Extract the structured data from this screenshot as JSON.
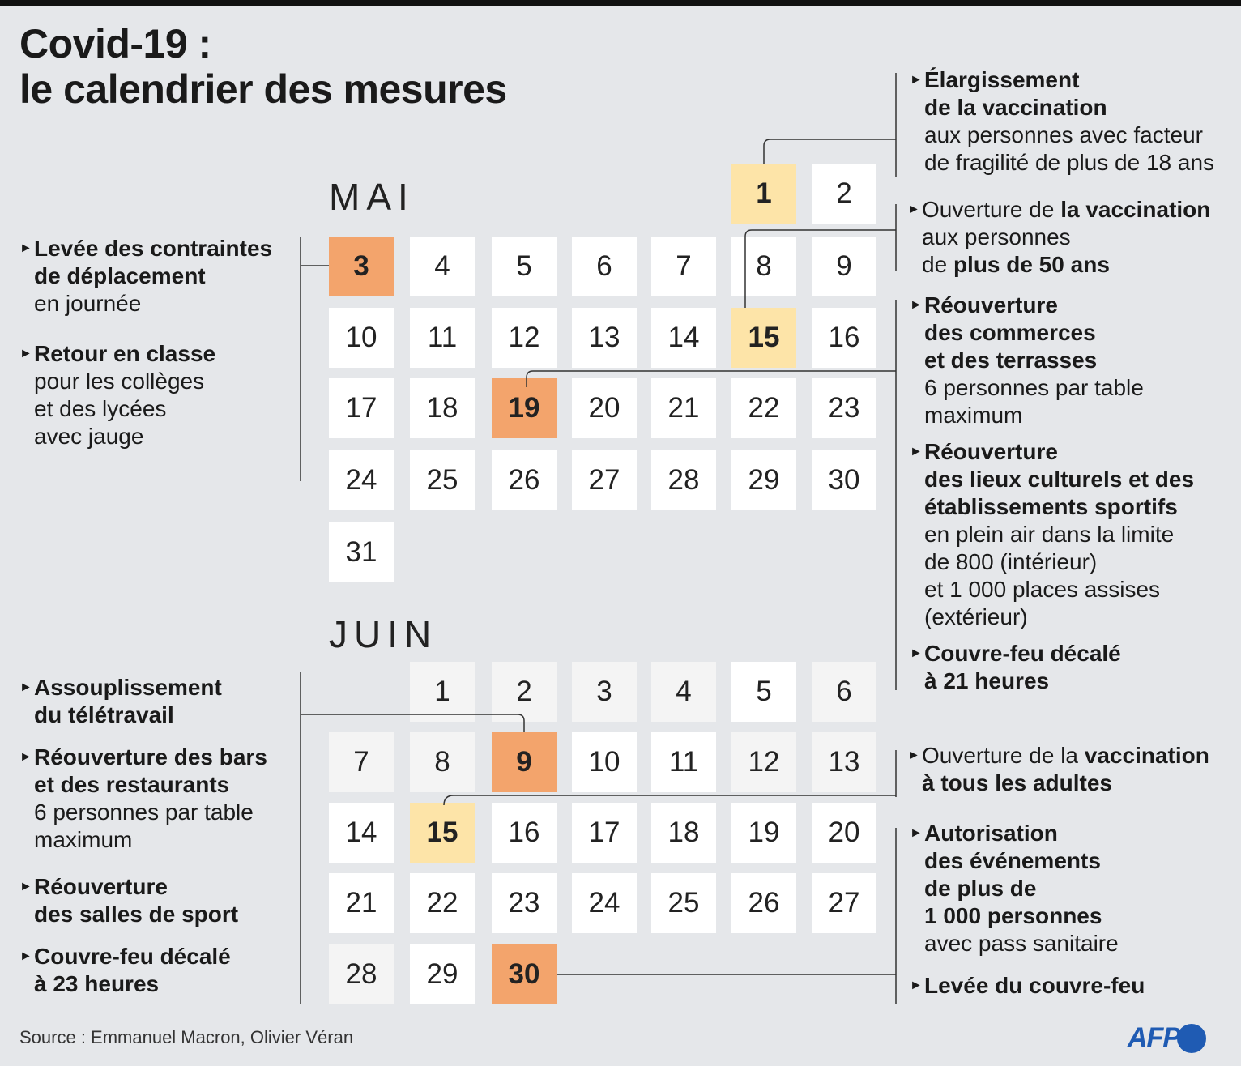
{
  "title": {
    "line1": "Covid-19 :",
    "line2": "le calendrier des mesures"
  },
  "months": {
    "mai": "MAI",
    "juin": "JUIN"
  },
  "mai_days": [
    {
      "d": "1",
      "style": "yellow"
    },
    {
      "d": "2",
      "style": "white"
    },
    {
      "d": "3",
      "style": "orange"
    },
    {
      "d": "4",
      "style": "white"
    },
    {
      "d": "5",
      "style": "white"
    },
    {
      "d": "6",
      "style": "white"
    },
    {
      "d": "7",
      "style": "white"
    },
    {
      "d": "8",
      "style": "white"
    },
    {
      "d": "9",
      "style": "white"
    },
    {
      "d": "10",
      "style": "white"
    },
    {
      "d": "11",
      "style": "white"
    },
    {
      "d": "12",
      "style": "white"
    },
    {
      "d": "13",
      "style": "white"
    },
    {
      "d": "14",
      "style": "white"
    },
    {
      "d": "15",
      "style": "yellow"
    },
    {
      "d": "16",
      "style": "white"
    },
    {
      "d": "17",
      "style": "white"
    },
    {
      "d": "18",
      "style": "white"
    },
    {
      "d": "19",
      "style": "orange"
    },
    {
      "d": "20",
      "style": "white"
    },
    {
      "d": "21",
      "style": "white"
    },
    {
      "d": "22",
      "style": "white"
    },
    {
      "d": "23",
      "style": "white"
    },
    {
      "d": "24",
      "style": "white"
    },
    {
      "d": "25",
      "style": "white"
    },
    {
      "d": "26",
      "style": "white"
    },
    {
      "d": "27",
      "style": "white"
    },
    {
      "d": "28",
      "style": "white"
    },
    {
      "d": "29",
      "style": "white"
    },
    {
      "d": "30",
      "style": "white"
    },
    {
      "d": "31",
      "style": "white"
    }
  ],
  "juin_days": [
    {
      "d": "1",
      "style": "pale"
    },
    {
      "d": "2",
      "style": "pale"
    },
    {
      "d": "3",
      "style": "pale"
    },
    {
      "d": "4",
      "style": "pale"
    },
    {
      "d": "5",
      "style": "white"
    },
    {
      "d": "6",
      "style": "pale"
    },
    {
      "d": "7",
      "style": "pale"
    },
    {
      "d": "8",
      "style": "pale"
    },
    {
      "d": "9",
      "style": "orange"
    },
    {
      "d": "10",
      "style": "white"
    },
    {
      "d": "11",
      "style": "white"
    },
    {
      "d": "12",
      "style": "pale"
    },
    {
      "d": "13",
      "style": "pale"
    },
    {
      "d": "14",
      "style": "white"
    },
    {
      "d": "15",
      "style": "yellow"
    },
    {
      "d": "16",
      "style": "white"
    },
    {
      "d": "17",
      "style": "white"
    },
    {
      "d": "18",
      "style": "white"
    },
    {
      "d": "19",
      "style": "white"
    },
    {
      "d": "20",
      "style": "white"
    },
    {
      "d": "21",
      "style": "white"
    },
    {
      "d": "22",
      "style": "white"
    },
    {
      "d": "23",
      "style": "white"
    },
    {
      "d": "24",
      "style": "white"
    },
    {
      "d": "25",
      "style": "white"
    },
    {
      "d": "26",
      "style": "white"
    },
    {
      "d": "27",
      "style": "white"
    },
    {
      "d": "28",
      "style": "pale"
    },
    {
      "d": "29",
      "style": "white"
    },
    {
      "d": "30",
      "style": "orange"
    }
  ],
  "notes": {
    "m1": {
      "b1": "Élargissement",
      "b2": "de la vaccination",
      "t1": "aux personnes avec facteur",
      "t2": "de fragilité de plus de 18 ans"
    },
    "m15": {
      "t1": "Ouverture de ",
      "b1": "la vaccination",
      "t2": "aux personnes",
      "t3": "de ",
      "b2": "plus de 50 ans"
    },
    "m3a": {
      "b1": "Levée des contraintes",
      "b2": "de déplacement",
      "t1": "en journée"
    },
    "m3b": {
      "b1": "Retour en classe",
      "t1": "pour les collèges",
      "t2": "et des lycées",
      "t3": "avec jauge"
    },
    "m19a": {
      "b1": "Réouverture",
      "b2": "des commerces",
      "b3": "et des terrasses",
      "t1": "6 personnes par table",
      "t2": "maximum"
    },
    "m19b": {
      "b1": "Réouverture",
      "b2": "des lieux culturels et des",
      "b3": "établissements sportifs",
      "t1": "en plein air dans la limite",
      "t2": "de 800 (intérieur)",
      "t3": "et 1 000 places assises",
      "t4": "(extérieur)"
    },
    "m19c": {
      "b1": "Couvre-feu décalé",
      "b2": "à 21 heures"
    },
    "j9a": {
      "b1": "Assouplissement",
      "b2": "du télétravail"
    },
    "j9b": {
      "b1": "Réouverture des bars",
      "b2": "et des restaurants",
      "t1": "6 personnes par table",
      "t2": "maximum"
    },
    "j9c": {
      "b1": "Réouverture",
      "b2": "des salles de sport"
    },
    "j9d": {
      "b1": "Couvre-feu décalé",
      "b2": "à 23 heures"
    },
    "j15": {
      "t1": "Ouverture de la ",
      "b1": "vaccination",
      "b2": "à tous les adultes"
    },
    "j30a": {
      "b1": "Autorisation",
      "b2": "des événements",
      "b3": "de plus de",
      "b4": "1 000 personnes",
      "t1": "avec pass sanitaire"
    },
    "j30b": {
      "b1": "Levée du couvre-feu"
    }
  },
  "bullet": "►",
  "source": "Source : Emmanuel Macron, Olivier Véran",
  "logo": "AFP",
  "colors": {
    "yellow": "#fde4a8",
    "orange": "#f3a46c",
    "background": "#e5e7ea",
    "afp_blue": "#1f5bb3"
  }
}
